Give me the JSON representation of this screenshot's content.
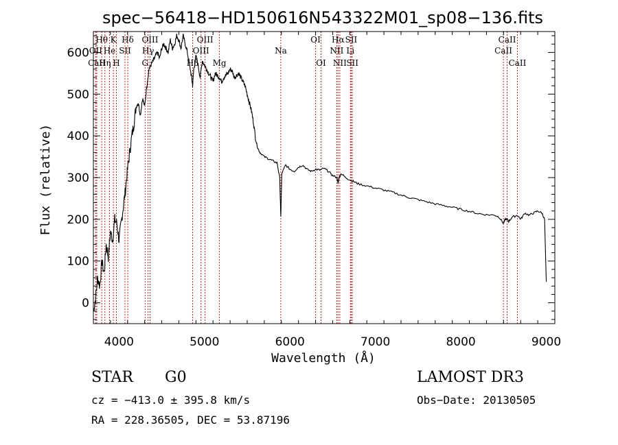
{
  "chart_data": {
    "type": "line",
    "title": "spec−56418−HD150616N543322M01_sp08−136.fits",
    "xlabel": "Wavelength (Å)",
    "ylabel": "Flux (relative)",
    "xlim": [
      3700,
      9100
    ],
    "ylim": [
      -50,
      650
    ],
    "xticks": [
      4000,
      5000,
      6000,
      7000,
      8000,
      9000
    ],
    "yticks": [
      0,
      100,
      200,
      300,
      400,
      500,
      600
    ],
    "x": [
      3700,
      3725,
      3750,
      3775,
      3800,
      3825,
      3850,
      3875,
      3900,
      3925,
      3950,
      3975,
      4000,
      4025,
      4050,
      4075,
      4100,
      4125,
      4150,
      4175,
      4200,
      4225,
      4250,
      4275,
      4300,
      4325,
      4350,
      4375,
      4400,
      4425,
      4450,
      4475,
      4500,
      4525,
      4550,
      4575,
      4600,
      4625,
      4650,
      4675,
      4700,
      4725,
      4750,
      4775,
      4800,
      4825,
      4850,
      4861,
      4875,
      4900,
      4925,
      4950,
      4975,
      5000,
      5025,
      5050,
      5075,
      5100,
      5125,
      5150,
      5175,
      5200,
      5225,
      5250,
      5275,
      5300,
      5325,
      5350,
      5375,
      5400,
      5425,
      5450,
      5475,
      5500,
      5525,
      5550,
      5575,
      5600,
      5625,
      5650,
      5700,
      5750,
      5800,
      5850,
      5880,
      5893,
      5905,
      5950,
      6000,
      6050,
      6100,
      6150,
      6200,
      6250,
      6300,
      6350,
      6400,
      6450,
      6500,
      6550,
      6563,
      6575,
      6600,
      6650,
      6700,
      6750,
      6800,
      6900,
      7000,
      7100,
      7200,
      7300,
      7400,
      7500,
      7600,
      7700,
      7800,
      7900,
      8000,
      8100,
      8200,
      8300,
      8400,
      8450,
      8498,
      8520,
      8542,
      8560,
      8600,
      8662,
      8700,
      8750,
      8800,
      8850,
      8900,
      8950,
      8980,
      9000
    ],
    "values": [
      -20,
      10,
      60,
      40,
      100,
      70,
      140,
      110,
      170,
      150,
      200,
      190,
      150,
      190,
      230,
      270,
      320,
      360,
      400,
      430,
      470,
      480,
      450,
      490,
      470,
      520,
      560,
      570,
      580,
      590,
      600,
      585,
      610,
      620,
      610,
      600,
      630,
      610,
      620,
      640,
      630,
      610,
      640,
      620,
      600,
      570,
      540,
      520,
      560,
      590,
      570,
      540,
      580,
      570,
      560,
      550,
      540,
      530,
      550,
      545,
      540,
      530,
      540,
      545,
      550,
      560,
      555,
      540,
      545,
      550,
      540,
      530,
      520,
      500,
      480,
      460,
      430,
      390,
      370,
      360,
      350,
      345,
      340,
      335,
      300,
      205,
      310,
      330,
      320,
      315,
      325,
      330,
      320,
      315,
      320,
      318,
      322,
      315,
      305,
      300,
      285,
      300,
      310,
      300,
      295,
      290,
      285,
      280,
      275,
      270,
      265,
      258,
      252,
      247,
      242,
      237,
      233,
      229,
      224,
      219,
      214,
      211,
      210,
      205,
      190,
      200,
      200,
      195,
      205,
      210,
      200,
      215,
      210,
      215,
      220,
      215,
      200,
      50
    ],
    "lines": [
      {
        "label": "Hθ",
        "wl": 3798,
        "row": 1
      },
      {
        "label": "OII",
        "wl": 3727,
        "row": 2
      },
      {
        "label": "CaII",
        "wl": 3740,
        "row": 3
      },
      {
        "label": "Hη",
        "wl": 3835,
        "row": 3
      },
      {
        "label": "He",
        "wl": 3889,
        "row": 2
      },
      {
        "label": "K",
        "wl": 3934,
        "row": 1
      },
      {
        "label": "SII",
        "wl": 4070,
        "row": 2
      },
      {
        "label": "H",
        "wl": 3969,
        "row": 3
      },
      {
        "label": "Hδ",
        "wl": 4102,
        "row": 1
      },
      {
        "label": "OIII",
        "wl": 4363,
        "row": 1
      },
      {
        "label": "Hγ",
        "wl": 4340,
        "row": 2
      },
      {
        "label": "G",
        "wl": 4305,
        "row": 3
      },
      {
        "label": "Hβ",
        "wl": 4861,
        "row": 3
      },
      {
        "label": "OIII",
        "wl": 4959,
        "row": 2
      },
      {
        "label": "OIII",
        "wl": 5007,
        "row": 1
      },
      {
        "label": "Mg",
        "wl": 5175,
        "row": 3
      },
      {
        "label": "Na",
        "wl": 5893,
        "row": 2
      },
      {
        "label": "OI",
        "wl": 6300,
        "row": 1
      },
      {
        "label": "OI",
        "wl": 6364,
        "row": 3
      },
      {
        "label": "Hα",
        "wl": 6563,
        "row": 1
      },
      {
        "label": "NII",
        "wl": 6548,
        "row": 2
      },
      {
        "label": "NII",
        "wl": 6584,
        "row": 3
      },
      {
        "label": "SII",
        "wl": 6717,
        "row": 1
      },
      {
        "label": "Li",
        "wl": 6708,
        "row": 2
      },
      {
        "label": "SII",
        "wl": 6731,
        "row": 3
      },
      {
        "label": "CaII",
        "wl": 8498,
        "row": 2
      },
      {
        "label": "CaII",
        "wl": 8542,
        "row": 1
      },
      {
        "label": "CaII",
        "wl": 8662,
        "row": 3
      }
    ]
  },
  "info": {
    "class_label": "STAR",
    "subclass": "G0",
    "survey": "LAMOST DR3",
    "cz": "cz = −413.0 ± 395.8 km/s",
    "obs_date": "Obs−Date: 20130505",
    "coords": "RA = 228.36505, DEC =  53.87196"
  },
  "colors": {
    "line_marker": "#b22222",
    "spectrum": "#000000"
  }
}
